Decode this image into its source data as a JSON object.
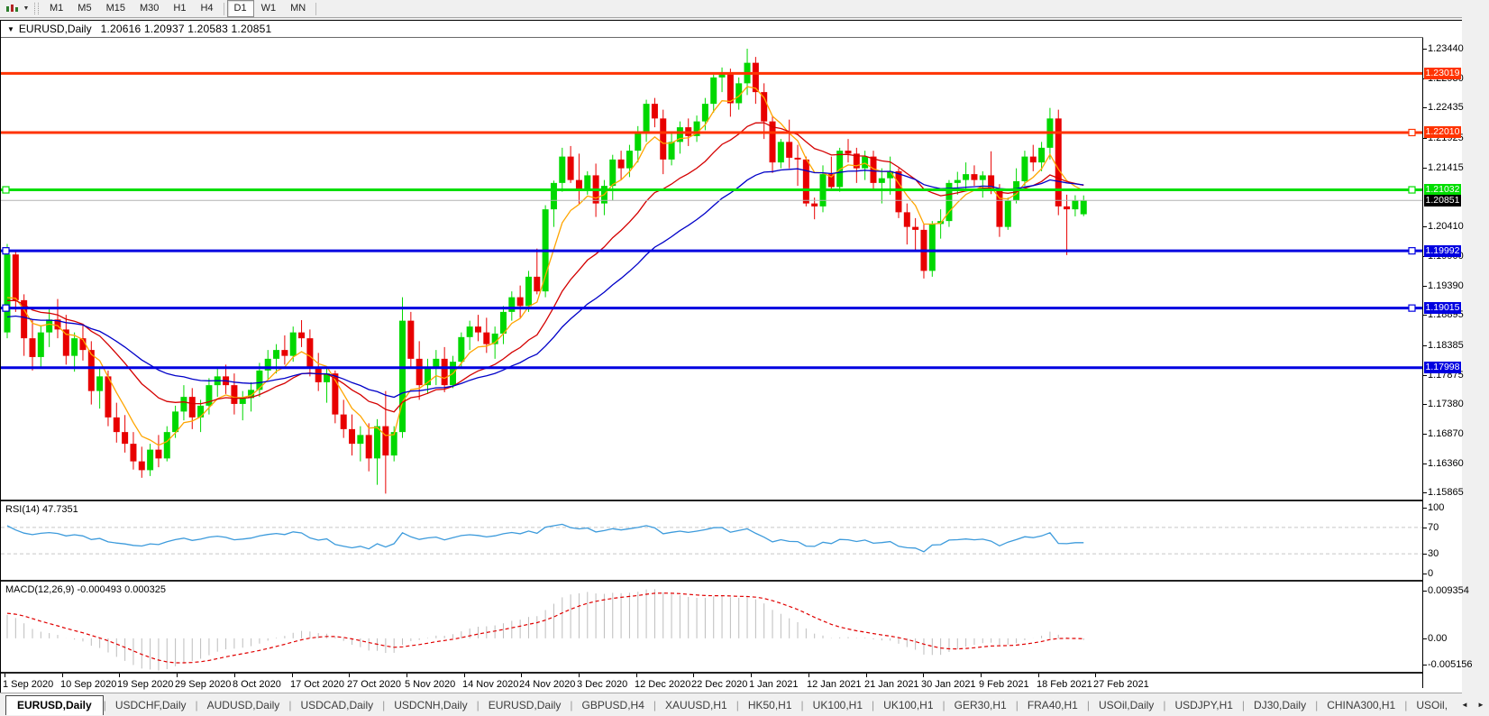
{
  "toolbar": {
    "timeframes": [
      "M1",
      "M5",
      "M15",
      "M30",
      "H1",
      "H4",
      "D1",
      "W1",
      "MN"
    ],
    "active_timeframe": "D1"
  },
  "icons": {
    "collapse": "▼",
    "dropdown": "▼",
    "scroll_left": "◄",
    "scroll_right": "►"
  },
  "window": {
    "symbol": "EURUSD,Daily",
    "ohlc": "1.20616 1.20937 1.20583 1.20851"
  },
  "chart": {
    "colors": {
      "up": "#00D800",
      "down": "#E80000",
      "current_line": "#b4b4b4",
      "current_badge": "#000000"
    },
    "price_ticks": [
      "1.23440",
      "1.22930",
      "1.22435",
      "1.21925",
      "1.21415",
      "1.20410",
      "1.19900",
      "1.19390",
      "1.18895",
      "1.18385",
      "1.17875",
      "1.17380",
      "1.16870",
      "1.16360",
      "1.15865"
    ],
    "hlines": [
      {
        "label": "1.23019",
        "price": 1.23019,
        "color": "#FF3300",
        "handles": []
      },
      {
        "label": "1.22010",
        "price": 1.2201,
        "color": "#FF3300",
        "handles": [
          "right"
        ]
      },
      {
        "label": "1.21032",
        "price": 1.21032,
        "color": "#00DE00",
        "handles": [
          "left",
          "right"
        ]
      },
      {
        "label": "1.19992",
        "price": 1.19992,
        "color": "#0000E0",
        "handles": [
          "left",
          "right"
        ]
      },
      {
        "label": "1.19015",
        "price": 1.19015,
        "color": "#0000E0",
        "handles": [
          "left",
          "right"
        ]
      },
      {
        "label": "1.17998",
        "price": 1.17998,
        "color": "#0000E0",
        "handles": []
      }
    ],
    "current": {
      "label": "1.20851",
      "price": 1.20851
    },
    "ma": [
      {
        "period": 6,
        "seed": 1.189,
        "color": "#FFA500"
      },
      {
        "period": 18,
        "seed": 1.1905,
        "color": "#D40000"
      },
      {
        "period": 35,
        "seed": 1.188,
        "color": "#0000C8"
      }
    ],
    "candles": [
      [
        1.186,
        1.2011,
        1.185,
        1.1993
      ],
      [
        1.1993,
        1.2,
        1.1895,
        1.1915
      ],
      [
        1.1915,
        1.1925,
        1.182,
        1.185
      ],
      [
        1.185,
        1.1882,
        1.1795,
        1.1818
      ],
      [
        1.1818,
        1.1872,
        1.18,
        1.186
      ],
      [
        1.186,
        1.19,
        1.1835,
        1.1882
      ],
      [
        1.1882,
        1.1917,
        1.185,
        1.1865
      ],
      [
        1.1865,
        1.189,
        1.1805,
        1.182
      ],
      [
        1.182,
        1.186,
        1.1793,
        1.185
      ],
      [
        1.185,
        1.1873,
        1.1812,
        1.183
      ],
      [
        1.183,
        1.1845,
        1.1737,
        1.176
      ],
      [
        1.176,
        1.18,
        1.173,
        1.1785
      ],
      [
        1.1785,
        1.1795,
        1.17,
        1.1715
      ],
      [
        1.1715,
        1.174,
        1.1672,
        1.169
      ],
      [
        1.169,
        1.1719,
        1.1655,
        1.167
      ],
      [
        1.167,
        1.169,
        1.1626,
        1.164
      ],
      [
        1.164,
        1.1665,
        1.1612,
        1.1625
      ],
      [
        1.1625,
        1.167,
        1.1615,
        1.166
      ],
      [
        1.166,
        1.1685,
        1.163,
        1.1645
      ],
      [
        1.1645,
        1.17,
        1.164,
        1.169
      ],
      [
        1.169,
        1.1735,
        1.168,
        1.1725
      ],
      [
        1.1725,
        1.177,
        1.171,
        1.175
      ],
      [
        1.175,
        1.1765,
        1.1695,
        1.1715
      ],
      [
        1.1715,
        1.1745,
        1.169,
        1.1735
      ],
      [
        1.1735,
        1.1782,
        1.172,
        1.177
      ],
      [
        1.177,
        1.1798,
        1.175,
        1.1785
      ],
      [
        1.1785,
        1.1805,
        1.1755,
        1.177
      ],
      [
        1.177,
        1.179,
        1.172,
        1.1738
      ],
      [
        1.1738,
        1.176,
        1.171,
        1.1748
      ],
      [
        1.1748,
        1.1775,
        1.1725,
        1.1762
      ],
      [
        1.1762,
        1.1808,
        1.175,
        1.1795
      ],
      [
        1.1795,
        1.183,
        1.178,
        1.1815
      ],
      [
        1.1815,
        1.184,
        1.179,
        1.183
      ],
      [
        1.183,
        1.1855,
        1.1805,
        1.182
      ],
      [
        1.182,
        1.187,
        1.181,
        1.186
      ],
      [
        1.186,
        1.1881,
        1.1835,
        1.185
      ],
      [
        1.185,
        1.1865,
        1.1785,
        1.18
      ],
      [
        1.18,
        1.1825,
        1.176,
        1.1775
      ],
      [
        1.1775,
        1.18,
        1.174,
        1.179
      ],
      [
        1.179,
        1.1795,
        1.1705,
        1.172
      ],
      [
        1.172,
        1.1745,
        1.168,
        1.1695
      ],
      [
        1.1695,
        1.172,
        1.165,
        1.167
      ],
      [
        1.167,
        1.17,
        1.164,
        1.1685
      ],
      [
        1.1685,
        1.1705,
        1.1623,
        1.1645
      ],
      [
        1.1645,
        1.1712,
        1.16,
        1.17
      ],
      [
        1.17,
        1.176,
        1.1585,
        1.165
      ],
      [
        1.165,
        1.17,
        1.164,
        1.169
      ],
      [
        1.169,
        1.192,
        1.168,
        1.188
      ],
      [
        1.188,
        1.1895,
        1.18,
        1.1815
      ],
      [
        1.1815,
        1.1845,
        1.1745,
        1.177
      ],
      [
        1.177,
        1.1815,
        1.1755,
        1.18
      ],
      [
        1.18,
        1.183,
        1.177,
        1.1815
      ],
      [
        1.1815,
        1.1835,
        1.1758,
        1.177
      ],
      [
        1.177,
        1.182,
        1.1765,
        1.181
      ],
      [
        1.181,
        1.186,
        1.18,
        1.1852
      ],
      [
        1.1852,
        1.188,
        1.183,
        1.187
      ],
      [
        1.187,
        1.189,
        1.1845,
        1.186
      ],
      [
        1.186,
        1.1885,
        1.1825,
        1.184
      ],
      [
        1.184,
        1.187,
        1.1815,
        1.1858
      ],
      [
        1.1858,
        1.1905,
        1.184,
        1.1895
      ],
      [
        1.1895,
        1.193,
        1.188,
        1.192
      ],
      [
        1.192,
        1.194,
        1.1885,
        1.1905
      ],
      [
        1.1905,
        1.1965,
        1.1895,
        1.1955
      ],
      [
        1.1955,
        1.2003,
        1.1925,
        1.193
      ],
      [
        1.193,
        1.2077,
        1.192,
        1.207
      ],
      [
        1.207,
        1.2119,
        1.204,
        1.2115
      ],
      [
        1.2115,
        1.2175,
        1.21,
        1.216
      ],
      [
        1.216,
        1.2178,
        1.2115,
        1.212
      ],
      [
        1.212,
        1.2165,
        1.2079,
        1.2105
      ],
      [
        1.2105,
        1.2135,
        1.2095,
        1.2128
      ],
      [
        1.2128,
        1.2148,
        1.2057,
        1.208
      ],
      [
        1.208,
        1.212,
        1.206,
        1.211
      ],
      [
        1.211,
        1.2163,
        1.2085,
        1.2155
      ],
      [
        1.2155,
        1.217,
        1.212,
        1.214
      ],
      [
        1.214,
        1.218,
        1.2125,
        1.217
      ],
      [
        1.217,
        1.2212,
        1.215,
        1.22
      ],
      [
        1.22,
        1.2257,
        1.2185,
        1.225
      ],
      [
        1.225,
        1.226,
        1.221,
        1.2225
      ],
      [
        1.2225,
        1.224,
        1.213,
        1.2155
      ],
      [
        1.2155,
        1.22,
        1.2145,
        1.2185
      ],
      [
        1.2185,
        1.222,
        1.2165,
        1.221
      ],
      [
        1.221,
        1.2225,
        1.2178,
        1.2195
      ],
      [
        1.2195,
        1.223,
        1.2185,
        1.222
      ],
      [
        1.222,
        1.226,
        1.2205,
        1.225
      ],
      [
        1.225,
        1.23,
        1.2235,
        1.2295
      ],
      [
        1.2295,
        1.2312,
        1.227,
        1.23
      ],
      [
        1.23,
        1.231,
        1.2228,
        1.2251
      ],
      [
        1.2251,
        1.2295,
        1.224,
        1.2285
      ],
      [
        1.2285,
        1.2344,
        1.2265,
        1.232
      ],
      [
        1.232,
        1.233,
        1.225,
        1.227
      ],
      [
        1.227,
        1.2285,
        1.219,
        1.222
      ],
      [
        1.222,
        1.223,
        1.2132,
        1.215
      ],
      [
        1.215,
        1.219,
        1.214,
        1.2185
      ],
      [
        1.2185,
        1.2223,
        1.214,
        1.2158
      ],
      [
        1.2158,
        1.218,
        1.211,
        1.2155
      ],
      [
        1.2155,
        1.216,
        1.2075,
        1.208
      ],
      [
        1.208,
        1.209,
        1.2053,
        1.2075
      ],
      [
        1.2075,
        1.2145,
        1.2065,
        1.213
      ],
      [
        1.213,
        1.216,
        1.2105,
        1.2108
      ],
      [
        1.2108,
        1.2175,
        1.21,
        1.217
      ],
      [
        1.217,
        1.219,
        1.215,
        1.2165
      ],
      [
        1.2165,
        1.2175,
        1.2115,
        1.214
      ],
      [
        1.214,
        1.217,
        1.212,
        1.216
      ],
      [
        1.216,
        1.217,
        1.2105,
        1.2115
      ],
      [
        1.2115,
        1.214,
        1.208,
        1.2123
      ],
      [
        1.2123,
        1.216,
        1.2095,
        1.2135
      ],
      [
        1.2135,
        1.214,
        1.2055,
        1.2065
      ],
      [
        1.2065,
        1.208,
        1.201,
        1.204
      ],
      [
        1.204,
        1.2055,
        1.2,
        1.2035
      ],
      [
        1.2035,
        1.2045,
        1.1952,
        1.1965
      ],
      [
        1.1965,
        1.205,
        1.1955,
        1.2045
      ],
      [
        1.2045,
        1.207,
        1.202,
        1.205
      ],
      [
        1.205,
        1.212,
        1.204,
        1.2115
      ],
      [
        1.2115,
        1.2134,
        1.2095,
        1.212
      ],
      [
        1.212,
        1.215,
        1.2105,
        1.213
      ],
      [
        1.213,
        1.2145,
        1.211,
        1.212
      ],
      [
        1.212,
        1.2135,
        1.209,
        1.2128
      ],
      [
        1.2128,
        1.2169,
        1.2096,
        1.2105
      ],
      [
        1.2105,
        1.2113,
        1.2023,
        1.204
      ],
      [
        1.204,
        1.209,
        1.2035,
        1.2085
      ],
      [
        1.2085,
        1.214,
        1.208,
        1.2118
      ],
      [
        1.2118,
        1.217,
        1.211,
        1.216
      ],
      [
        1.216,
        1.218,
        1.2135,
        1.215
      ],
      [
        1.215,
        1.2185,
        1.2135,
        1.2175
      ],
      [
        1.2175,
        1.2243,
        1.2155,
        1.2225
      ],
      [
        1.2225,
        1.224,
        1.206,
        1.2075
      ],
      [
        1.2075,
        1.2095,
        1.1992,
        1.207
      ],
      [
        1.207,
        1.2094,
        1.2058,
        1.2085
      ],
      [
        1.20616,
        1.20937,
        1.20583,
        1.20851
      ]
    ]
  },
  "rsi": {
    "display": "RSI(14) 47.7351",
    "levels": [
      "100",
      "70",
      "30",
      "0"
    ],
    "upper": 70,
    "lower": 30,
    "color": "#3D9BDC",
    "seed_gain": 0.0045,
    "seed_loss": 0.0017
  },
  "macd": {
    "display": "MACD(12,26,9) -0.000493 0.000325",
    "axis": [
      "0.009354",
      "0.00",
      "-0.005156"
    ],
    "max": 0.009354,
    "min": -0.005156,
    "hist_color": "#BDBDBD",
    "signal_color": "#E00000",
    "seed_fast": 1.194,
    "seed_slow": 1.1895,
    "seed_signal": 0.005
  },
  "dates": [
    "1 Sep 2020",
    "10 Sep 2020",
    "19 Sep 2020",
    "29 Sep 2020",
    "8 Oct 2020",
    "17 Oct 2020",
    "27 Oct 2020",
    "5 Nov 2020",
    "14 Nov 2020",
    "24 Nov 2020",
    "3 Dec 2020",
    "12 Dec 2020",
    "22 Dec 2020",
    "1 Jan 2021",
    "12 Jan 2021",
    "21 Jan 2021",
    "30 Jan 2021",
    "9 Feb 2021",
    "18 Feb 2021",
    "27 Feb 2021"
  ],
  "tabs": {
    "items": [
      "EURUSD,Daily",
      "USDCHF,Daily",
      "AUDUSD,Daily",
      "USDCAD,Daily",
      "USDCNH,Daily",
      "EURUSD,Daily",
      "GBPUSD,H4",
      "XAUUSD,H1",
      "HK50,H1",
      "UK100,H1",
      "UK100,H1",
      "GER30,H1",
      "FRA40,H1",
      "USOil,Daily",
      "USDJPY,H1",
      "DJ30,Daily",
      "CHINA300,H1",
      "USOil,"
    ],
    "active_index": 0
  }
}
